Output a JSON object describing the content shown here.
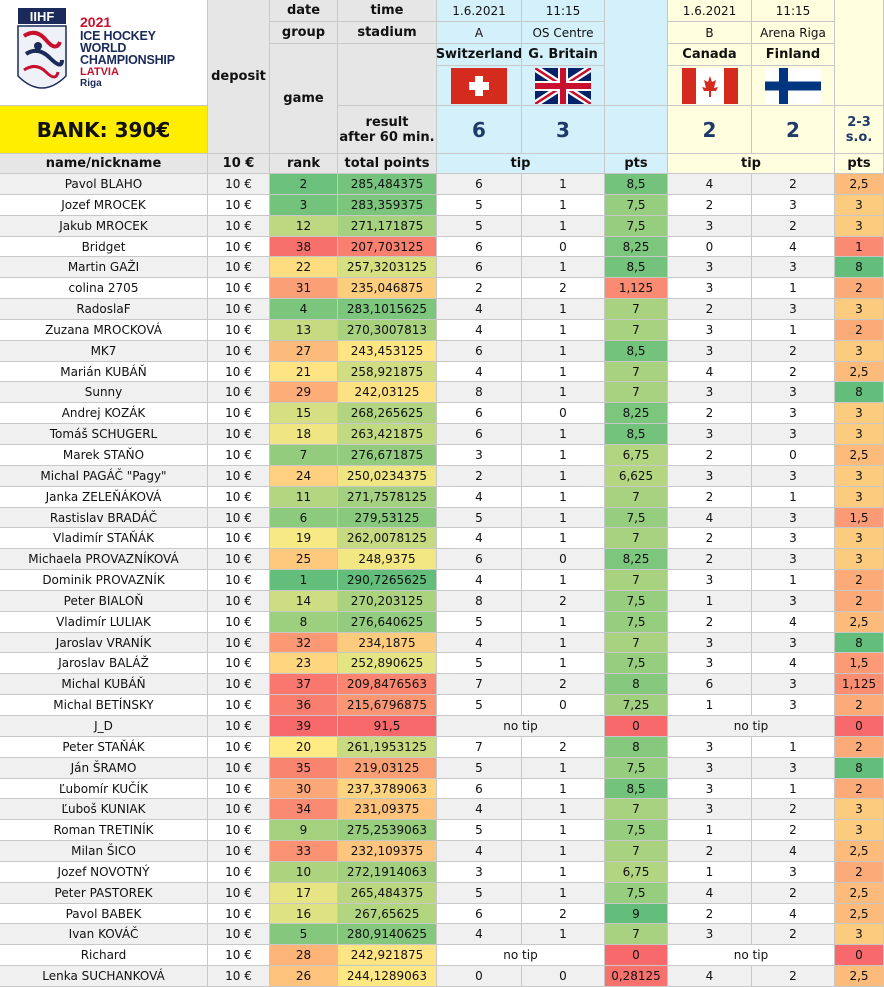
{
  "logo": {
    "brand": "IIHF",
    "year": "2021",
    "line1": "ICE HOCKEY",
    "line2": "WORLD",
    "line3": "CHAMPIONSHIP",
    "country": "LATVIA",
    "city": "Riga"
  },
  "header": {
    "bank": "BANK: 390€",
    "deposit": "deposit",
    "game": "game",
    "date_label": "date",
    "time_label": "time",
    "group_label": "group",
    "stadium_label": "stadium",
    "result_label_1": "result",
    "result_label_2": "after 60 min.",
    "name_col": "name/nickname",
    "deposit_col": "10 €",
    "rank_col": "rank",
    "points_col": "total points",
    "tip_label": "tip",
    "pts_label": "pts"
  },
  "games": [
    {
      "date": "1.6.2021",
      "time": "11:15",
      "group": "A",
      "stadium": "OS Centre",
      "home": "Switzerland",
      "away": "G. Britain",
      "home_flag": "flag-switzerland-icon",
      "away_flag": "flag-great-britain-icon",
      "score_home": "6",
      "score_away": "3",
      "extra": ""
    },
    {
      "date": "1.6.2021",
      "time": "11:15",
      "group": "B",
      "stadium": "Arena Riga",
      "home": "Canada",
      "away": "Finland",
      "home_flag": "flag-canada-icon",
      "away_flag": "flag-finland-icon",
      "score_home": "2",
      "score_away": "2",
      "extra": "2-3 s.o."
    }
  ],
  "colors": {
    "header_cyan": "#d4f1fb",
    "header_yellow": "#ffffe0",
    "bank_yellow": "#ffee00",
    "grey_header": "#e6e6e6",
    "row_white": "#ffffff",
    "row_grey": "#f0f0f0"
  },
  "rows": [
    {
      "name": "Pavol BLAHO",
      "dep": "10 €",
      "rank": "2",
      "total": "285,484375",
      "t1h": "6",
      "t1a": "1",
      "p1": "8,5",
      "t2h": "4",
      "t2a": "2",
      "p2": "2,5"
    },
    {
      "name": "Jozef MROCEK",
      "dep": "10 €",
      "rank": "3",
      "total": "283,359375",
      "t1h": "5",
      "t1a": "1",
      "p1": "7,5",
      "t2h": "2",
      "t2a": "3",
      "p2": "3"
    },
    {
      "name": "Jakub MROCEK",
      "dep": "10 €",
      "rank": "12",
      "total": "271,171875",
      "t1h": "5",
      "t1a": "1",
      "p1": "7,5",
      "t2h": "3",
      "t2a": "2",
      "p2": "3"
    },
    {
      "name": "Bridget",
      "dep": "10 €",
      "rank": "38",
      "total": "207,703125",
      "t1h": "6",
      "t1a": "0",
      "p1": "8,25",
      "t2h": "0",
      "t2a": "4",
      "p2": "1"
    },
    {
      "name": "Martin GAŽI",
      "dep": "10 €",
      "rank": "22",
      "total": "257,3203125",
      "t1h": "6",
      "t1a": "1",
      "p1": "8,5",
      "t2h": "3",
      "t2a": "3",
      "p2": "8"
    },
    {
      "name": "colina 2705",
      "dep": "10 €",
      "rank": "31",
      "total": "235,046875",
      "t1h": "2",
      "t1a": "2",
      "p1": "1,125",
      "t2h": "3",
      "t2a": "1",
      "p2": "2"
    },
    {
      "name": "RadoslaF",
      "dep": "10 €",
      "rank": "4",
      "total": "283,1015625",
      "t1h": "4",
      "t1a": "1",
      "p1": "7",
      "t2h": "2",
      "t2a": "3",
      "p2": "3"
    },
    {
      "name": "Zuzana MROCKOVÁ",
      "dep": "10 €",
      "rank": "13",
      "total": "270,3007813",
      "t1h": "4",
      "t1a": "1",
      "p1": "7",
      "t2h": "3",
      "t2a": "1",
      "p2": "2"
    },
    {
      "name": "MK7",
      "dep": "10 €",
      "rank": "27",
      "total": "243,453125",
      "t1h": "6",
      "t1a": "1",
      "p1": "8,5",
      "t2h": "3",
      "t2a": "2",
      "p2": "3"
    },
    {
      "name": "Marián KUBÁŇ",
      "dep": "10 €",
      "rank": "21",
      "total": "258,921875",
      "t1h": "4",
      "t1a": "1",
      "p1": "7",
      "t2h": "4",
      "t2a": "2",
      "p2": "2,5"
    },
    {
      "name": "Sunny",
      "dep": "10 €",
      "rank": "29",
      "total": "242,03125",
      "t1h": "8",
      "t1a": "1",
      "p1": "7",
      "t2h": "3",
      "t2a": "3",
      "p2": "8"
    },
    {
      "name": "Andrej KOZÁK",
      "dep": "10 €",
      "rank": "15",
      "total": "268,265625",
      "t1h": "6",
      "t1a": "0",
      "p1": "8,25",
      "t2h": "2",
      "t2a": "3",
      "p2": "3"
    },
    {
      "name": "Tomáš SCHUGERL",
      "dep": "10 €",
      "rank": "18",
      "total": "263,421875",
      "t1h": "6",
      "t1a": "1",
      "p1": "8,5",
      "t2h": "3",
      "t2a": "3",
      "p2": "3"
    },
    {
      "name": "Marek STAŇO",
      "dep": "10 €",
      "rank": "7",
      "total": "276,671875",
      "t1h": "3",
      "t1a": "1",
      "p1": "6,75",
      "t2h": "2",
      "t2a": "0",
      "p2": "2,5"
    },
    {
      "name": "Michal PAGÁČ \"Pagy\"",
      "dep": "10 €",
      "rank": "24",
      "total": "250,0234375",
      "t1h": "2",
      "t1a": "1",
      "p1": "6,625",
      "t2h": "3",
      "t2a": "3",
      "p2": "3"
    },
    {
      "name": "Janka ZELEŇÁKOVÁ",
      "dep": "10 €",
      "rank": "11",
      "total": "271,7578125",
      "t1h": "4",
      "t1a": "1",
      "p1": "7",
      "t2h": "2",
      "t2a": "1",
      "p2": "3"
    },
    {
      "name": "Rastislav BRADÁČ",
      "dep": "10 €",
      "rank": "6",
      "total": "279,53125",
      "t1h": "5",
      "t1a": "1",
      "p1": "7,5",
      "t2h": "4",
      "t2a": "3",
      "p2": "1,5"
    },
    {
      "name": "Vladimír STAŇÁK",
      "dep": "10 €",
      "rank": "19",
      "total": "262,0078125",
      "t1h": "4",
      "t1a": "1",
      "p1": "7",
      "t2h": "2",
      "t2a": "3",
      "p2": "3"
    },
    {
      "name": "Michaela PROVAZNÍKOVÁ",
      "dep": "10 €",
      "rank": "25",
      "total": "248,9375",
      "t1h": "6",
      "t1a": "0",
      "p1": "8,25",
      "t2h": "2",
      "t2a": "3",
      "p2": "3"
    },
    {
      "name": "Dominik PROVAZNÍK",
      "dep": "10 €",
      "rank": "1",
      "total": "290,7265625",
      "t1h": "4",
      "t1a": "1",
      "p1": "7",
      "t2h": "3",
      "t2a": "1",
      "p2": "2"
    },
    {
      "name": "Peter BIALOŇ",
      "dep": "10 €",
      "rank": "14",
      "total": "270,203125",
      "t1h": "8",
      "t1a": "2",
      "p1": "7,5",
      "t2h": "1",
      "t2a": "3",
      "p2": "2"
    },
    {
      "name": "Vladimír LULIAK",
      "dep": "10 €",
      "rank": "8",
      "total": "276,640625",
      "t1h": "5",
      "t1a": "1",
      "p1": "7,5",
      "t2h": "2",
      "t2a": "4",
      "p2": "2,5"
    },
    {
      "name": "Jaroslav VRANÍK",
      "dep": "10 €",
      "rank": "32",
      "total": "234,1875",
      "t1h": "4",
      "t1a": "1",
      "p1": "7",
      "t2h": "3",
      "t2a": "3",
      "p2": "8"
    },
    {
      "name": "Jaroslav BALÁŽ",
      "dep": "10 €",
      "rank": "23",
      "total": "252,890625",
      "t1h": "5",
      "t1a": "1",
      "p1": "7,5",
      "t2h": "3",
      "t2a": "4",
      "p2": "1,5"
    },
    {
      "name": "Michal KUBÁŇ",
      "dep": "10 €",
      "rank": "37",
      "total": "209,8476563",
      "t1h": "7",
      "t1a": "2",
      "p1": "8",
      "t2h": "6",
      "t2a": "3",
      "p2": "1,125"
    },
    {
      "name": "Michal BETÍNSKY",
      "dep": "10 €",
      "rank": "36",
      "total": "215,6796875",
      "t1h": "5",
      "t1a": "0",
      "p1": "7,25",
      "t2h": "1",
      "t2a": "3",
      "p2": "2"
    },
    {
      "name": "J_D",
      "dep": "10 €",
      "rank": "39",
      "total": "91,5",
      "notip1": "no tip",
      "p1": "0",
      "notip2": "no tip",
      "p2": "0"
    },
    {
      "name": "Peter STAŇÁK",
      "dep": "10 €",
      "rank": "20",
      "total": "261,1953125",
      "t1h": "7",
      "t1a": "2",
      "p1": "8",
      "t2h": "3",
      "t2a": "1",
      "p2": "2"
    },
    {
      "name": "Ján ŠRAMO",
      "dep": "10 €",
      "rank": "35",
      "total": "219,03125",
      "t1h": "5",
      "t1a": "1",
      "p1": "7,5",
      "t2h": "3",
      "t2a": "3",
      "p2": "8"
    },
    {
      "name": "Ľubomír KUČÍK",
      "dep": "10 €",
      "rank": "30",
      "total": "237,3789063",
      "t1h": "6",
      "t1a": "1",
      "p1": "8,5",
      "t2h": "3",
      "t2a": "1",
      "p2": "2"
    },
    {
      "name": "Ľuboš KUNIAK",
      "dep": "10 €",
      "rank": "34",
      "total": "231,09375",
      "t1h": "4",
      "t1a": "1",
      "p1": "7",
      "t2h": "3",
      "t2a": "2",
      "p2": "3"
    },
    {
      "name": "Roman TRETINÍK",
      "dep": "10 €",
      "rank": "9",
      "total": "275,2539063",
      "t1h": "5",
      "t1a": "1",
      "p1": "7,5",
      "t2h": "1",
      "t2a": "2",
      "p2": "3"
    },
    {
      "name": "Milan ŠICO",
      "dep": "10 €",
      "rank": "33",
      "total": "232,109375",
      "t1h": "4",
      "t1a": "1",
      "p1": "7",
      "t2h": "2",
      "t2a": "4",
      "p2": "2,5"
    },
    {
      "name": "Jozef NOVOTNÝ",
      "dep": "10 €",
      "rank": "10",
      "total": "272,1914063",
      "t1h": "3",
      "t1a": "1",
      "p1": "6,75",
      "t2h": "1",
      "t2a": "3",
      "p2": "2"
    },
    {
      "name": "Peter PASTOREK",
      "dep": "10 €",
      "rank": "17",
      "total": "265,484375",
      "t1h": "5",
      "t1a": "1",
      "p1": "7,5",
      "t2h": "4",
      "t2a": "2",
      "p2": "2,5"
    },
    {
      "name": "Pavol BABEK",
      "dep": "10 €",
      "rank": "16",
      "total": "267,65625",
      "t1h": "6",
      "t1a": "2",
      "p1": "9",
      "t2h": "2",
      "t2a": "4",
      "p2": "2,5"
    },
    {
      "name": "Ivan KOVÁČ",
      "dep": "10 €",
      "rank": "5",
      "total": "280,9140625",
      "t1h": "4",
      "t1a": "1",
      "p1": "7",
      "t2h": "3",
      "t2a": "2",
      "p2": "3"
    },
    {
      "name": "Richard",
      "dep": "10 €",
      "rank": "28",
      "total": "242,921875",
      "notip1": "no tip",
      "p1": "0",
      "notip2": "no tip",
      "p2": "0"
    },
    {
      "name": "Lenka SUCHANKOVÁ",
      "dep": "10 €",
      "rank": "26",
      "total": "244,1289063",
      "t1h": "0",
      "t1a": "0",
      "p1": "0,28125",
      "t2h": "4",
      "t2a": "2",
      "p2": "2,5"
    }
  ]
}
